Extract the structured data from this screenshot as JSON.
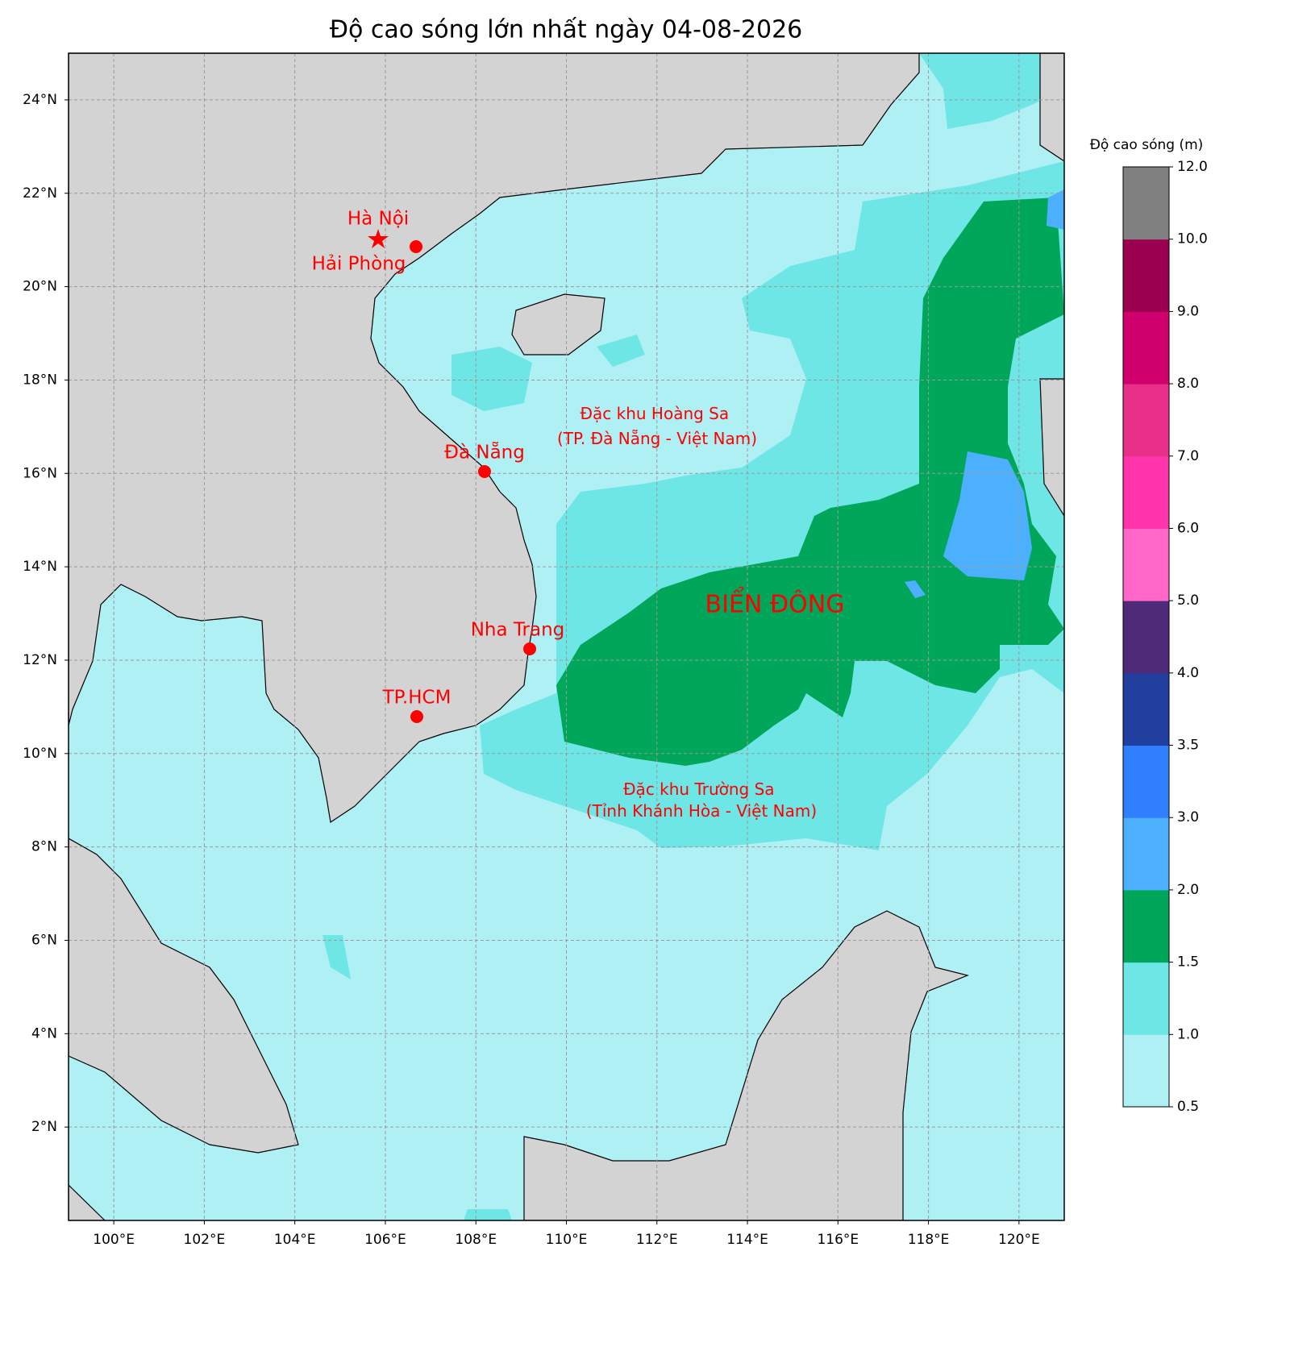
{
  "title": "Độ cao sóng lớn nhất ngày 04-08-2026",
  "map": {
    "xlim": [
      99,
      121
    ],
    "ylim": [
      0,
      25
    ],
    "grid": true,
    "xticks": [
      {
        "value": 100,
        "label": "100°E"
      },
      {
        "value": 102,
        "label": "102°E"
      },
      {
        "value": 104,
        "label": "104°E"
      },
      {
        "value": 106,
        "label": "106°E"
      },
      {
        "value": 108,
        "label": "108°E"
      },
      {
        "value": 110,
        "label": "110°E"
      },
      {
        "value": 112,
        "label": "112°E"
      },
      {
        "value": 114,
        "label": "114°E"
      },
      {
        "value": 116,
        "label": "116°E"
      },
      {
        "value": 118,
        "label": "118°E"
      },
      {
        "value": 120,
        "label": "120°E"
      }
    ],
    "yticks": [
      {
        "value": 2,
        "label": "2°N"
      },
      {
        "value": 4,
        "label": "4°N"
      },
      {
        "value": 6,
        "label": "6°N"
      },
      {
        "value": 8,
        "label": "8°N"
      },
      {
        "value": 10,
        "label": "10°N"
      },
      {
        "value": 12,
        "label": "12°N"
      },
      {
        "value": 14,
        "label": "14°N"
      },
      {
        "value": 16,
        "label": "16°N"
      },
      {
        "value": 18,
        "label": "18°N"
      },
      {
        "value": 20,
        "label": "20°N"
      },
      {
        "value": 22,
        "label": "22°N"
      },
      {
        "value": 24,
        "label": "24°N"
      }
    ]
  },
  "places": [
    {
      "label": "Hà Nội"
    },
    {
      "label": "Hải Phòng"
    },
    {
      "label": "Đà Nẵng"
    },
    {
      "label": "Nha Trang"
    },
    {
      "label": "TP.HCM"
    }
  ],
  "annotations": [
    {
      "lines": [
        "Đặc khu Hoàng Sa",
        "(TP. Đà Nẵng - Việt Nam)"
      ]
    },
    {
      "lines": [
        "Đặc khu Trường Sa",
        "(Tỉnh Khánh Hòa - Việt Nam)"
      ]
    },
    {
      "text": "BIỂN ĐÔNG"
    }
  ],
  "colorbar": {
    "title": "Độ cao sóng (m)",
    "levels": [
      0.5,
      {
        "value": 1,
        "label": "1.0"
      },
      1.5,
      {
        "value": 2,
        "label": "2.0"
      },
      {
        "value": 3,
        "label": "3.0"
      },
      3.5,
      {
        "value": 4,
        "label": "4.0"
      },
      {
        "value": 5,
        "label": "5.0"
      },
      {
        "value": 6,
        "label": "6.0"
      },
      {
        "value": 7,
        "label": "7.0"
      },
      {
        "value": 8,
        "label": "8.0"
      },
      {
        "value": 9,
        "label": "9.0"
      },
      {
        "value": 10,
        "label": "10.0"
      },
      {
        "value": 12,
        "label": "12.0"
      }
    ],
    "colors": [
      "#aff0f5",
      "#6ee6e6",
      "#00a65a",
      "#4db0ff",
      "#2f7fff",
      "#203f9e",
      "#4e2a78",
      "#ff66c8",
      "#ff33aa",
      "#e8308a",
      "#d0006f",
      "#9b0050",
      "#808080"
    ]
  }
}
